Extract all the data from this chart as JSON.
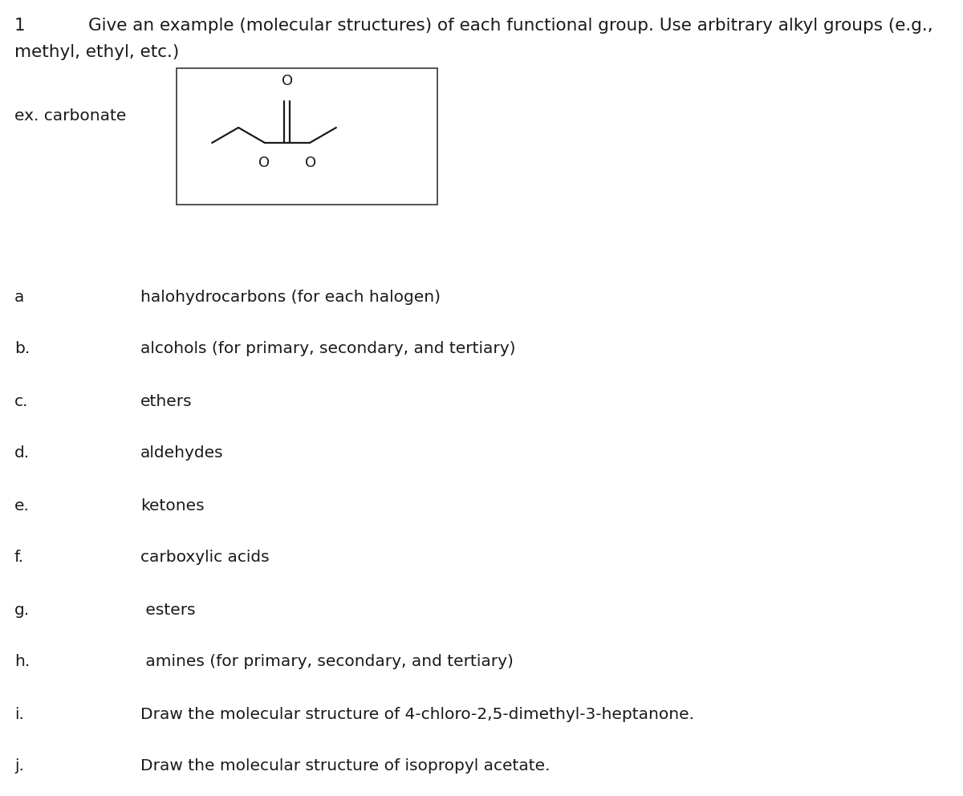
{
  "background_color": "#ffffff",
  "title_number": "1",
  "title_text": "Give an example (molecular structures) of each functional group. Use arbitrary alkyl groups (e.g.,",
  "title_text2": "methyl, ethyl, etc.)",
  "ex_label": "ex. carbonate",
  "items": [
    {
      "label": "a",
      "text": "halohydrocarbons (for each halogen)"
    },
    {
      "label": "b.",
      "text": "alcohols (for primary, secondary, and tertiary)"
    },
    {
      "label": "c.",
      "text": "ethers"
    },
    {
      "label": "d.",
      "text": "aldehydes"
    },
    {
      "label": "e.",
      "text": "ketones"
    },
    {
      "label": "f.",
      "text": "carboxylic acids"
    },
    {
      "label": "g.",
      "text": " esters"
    },
    {
      "label": "h.",
      "text": " amines (for primary, secondary, and tertiary)"
    },
    {
      "label": "i.",
      "text": "Draw the molecular structure of 4-chloro-2,5-dimethyl-3-heptanone."
    },
    {
      "label": "j.",
      "text": "Draw the molecular structure of isopropyl acetate."
    }
  ],
  "text_color": "#1a1a1a",
  "bond_color": "#1a1a1a",
  "box_edge_color": "#444444"
}
